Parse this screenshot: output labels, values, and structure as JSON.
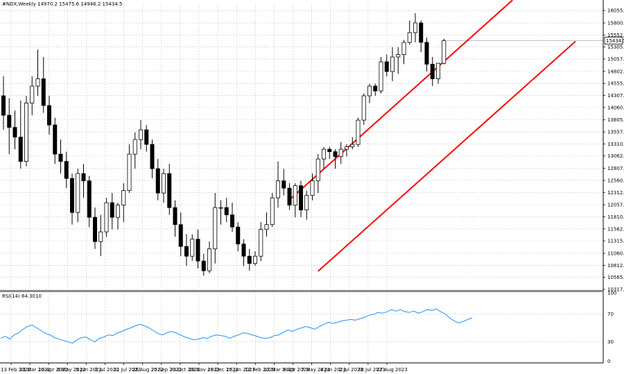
{
  "header": {
    "symbol_line": "#NDX,Weekly  14970.2 15475.6 14946.2 15434.5",
    "rsi_line": "RSI(14) 64.3010"
  },
  "colors": {
    "bull_fill": "#ffffff",
    "bear_fill": "#000000",
    "grid": "#c8c8c8",
    "channel": "#ff0000",
    "rsi": "#1e90ff",
    "price_tag": "#ffffff"
  },
  "chart_data": [
    {
      "type": "candlestick",
      "title": "#NDX,Weekly",
      "last_price_label": "15434.5",
      "ylim": [
        10317.5,
        16200
      ],
      "y_tick_labels": [
        "16055.0",
        "15800.0",
        "15552.5",
        "15305.0",
        "15057.5",
        "14802.5",
        "14555.0",
        "14307.5",
        "14060.0",
        "13805.0",
        "13557.5",
        "13310.0",
        "13062.5",
        "12807.5",
        "12560.0",
        "12312.5",
        "12057.5",
        "11810.0",
        "11562.5",
        "11315.0",
        "11060.0",
        "10812.5",
        "10565.0",
        "10317.5"
      ],
      "x_tick_labels": [
        "13 Feb 2022",
        "13 Mar 2022",
        "10 Apr 2022",
        "8 May 2022",
        "5 Jun 2022",
        "3 Jul 2022",
        "31 Jul 2022",
        "28 Aug 2022",
        "25 Sep 2022",
        "23 Oct 2022",
        "20 Nov 2022",
        "18 Dec 2022",
        "15 Jan 2023",
        "12 Feb 2023",
        "12 Mar 2023",
        "9 Apr 2023",
        "7 May 2023",
        "4 Jun 2023",
        "2 Jul 2023",
        "30 Jul 2023",
        "27 Aug 2023"
      ],
      "candles": [
        [
          14300,
          14700,
          13600,
          13900
        ],
        [
          13900,
          14250,
          13100,
          13650
        ],
        [
          13650,
          14000,
          13200,
          13450
        ],
        [
          13450,
          14200,
          12800,
          12950
        ],
        [
          12950,
          14300,
          12850,
          14150
        ],
        [
          14150,
          14700,
          13900,
          14500
        ],
        [
          14500,
          15250,
          14300,
          14650
        ],
        [
          14650,
          15100,
          13950,
          14100
        ],
        [
          14100,
          14300,
          13500,
          13700
        ],
        [
          13700,
          13850,
          12900,
          13100
        ],
        [
          13100,
          13400,
          12700,
          12950
        ],
        [
          12950,
          13150,
          12400,
          12600
        ],
        [
          12600,
          12700,
          11650,
          11900
        ],
        [
          11900,
          12800,
          11700,
          12700
        ],
        [
          12700,
          12900,
          12200,
          12550
        ],
        [
          12550,
          12650,
          11600,
          11800
        ],
        [
          11800,
          12000,
          11150,
          11300
        ],
        [
          11300,
          11850,
          11000,
          11500
        ],
        [
          11500,
          12200,
          11400,
          12100
        ],
        [
          12100,
          12300,
          11550,
          11800
        ],
        [
          11800,
          12100,
          11550,
          12050
        ],
        [
          12050,
          12500,
          11700,
          12350
        ],
        [
          12350,
          13300,
          12300,
          13100
        ],
        [
          13100,
          13550,
          12800,
          13400
        ],
        [
          13400,
          13800,
          13200,
          13600
        ],
        [
          13600,
          13700,
          13150,
          13300
        ],
        [
          13300,
          13400,
          12600,
          12800
        ],
        [
          12800,
          13000,
          12150,
          12300
        ],
        [
          12300,
          12800,
          12100,
          12700
        ],
        [
          12700,
          12900,
          11850,
          12000
        ],
        [
          12000,
          12150,
          11400,
          11650
        ],
        [
          11650,
          11900,
          11000,
          11200
        ],
        [
          11200,
          11450,
          10800,
          11000
        ],
        [
          11000,
          11450,
          10900,
          11350
        ],
        [
          11350,
          11550,
          10750,
          10900
        ],
        [
          10900,
          11050,
          10600,
          10700
        ],
        [
          10700,
          11300,
          10650,
          11150
        ],
        [
          11150,
          12300,
          10850,
          12000
        ],
        [
          12000,
          12150,
          11650,
          12000
        ],
        [
          12000,
          12200,
          11700,
          11850
        ],
        [
          11850,
          12100,
          11500,
          11600
        ],
        [
          11600,
          11700,
          11100,
          11250
        ],
        [
          11250,
          11350,
          10800,
          11000
        ],
        [
          11000,
          11150,
          10700,
          10850
        ],
        [
          10850,
          11100,
          10800,
          11000
        ],
        [
          11000,
          11700,
          10900,
          11550
        ],
        [
          11550,
          11900,
          11400,
          11650
        ],
        [
          11650,
          12300,
          11600,
          12200
        ],
        [
          12200,
          12950,
          12000,
          12550
        ],
        [
          12550,
          12800,
          12250,
          12400
        ],
        [
          12400,
          12500,
          11950,
          12050
        ],
        [
          12050,
          12500,
          11800,
          12450
        ],
        [
          12450,
          12550,
          11800,
          11950
        ],
        [
          11950,
          12350,
          11750,
          12250
        ],
        [
          12250,
          12700,
          12150,
          12550
        ],
        [
          12550,
          13100,
          12300,
          13000
        ],
        [
          13000,
          13250,
          12800,
          13200
        ],
        [
          13200,
          13250,
          13000,
          13150
        ],
        [
          13150,
          13200,
          12800,
          13050
        ],
        [
          13050,
          13350,
          12900,
          13200
        ],
        [
          13200,
          13300,
          13050,
          13250
        ],
        [
          13250,
          13450,
          13200,
          13300
        ],
        [
          13300,
          13850,
          13250,
          13800
        ],
        [
          13800,
          14350,
          13700,
          14300
        ],
        [
          14300,
          14550,
          14150,
          14500
        ],
        [
          14500,
          14550,
          14300,
          14400
        ],
        [
          14400,
          15100,
          14350,
          15000
        ],
        [
          15000,
          15150,
          14700,
          14800
        ],
        [
          14800,
          15300,
          14600,
          15100
        ],
        [
          15100,
          15300,
          14750,
          15150
        ],
        [
          15150,
          15450,
          14950,
          15400
        ],
        [
          15400,
          15850,
          15350,
          15600
        ],
        [
          15600,
          16000,
          15400,
          15800
        ],
        [
          15800,
          15850,
          15200,
          15400
        ],
        [
          15400,
          15500,
          14800,
          14950
        ],
        [
          14950,
          15100,
          14500,
          14650
        ],
        [
          14650,
          14950,
          14550,
          14970
        ],
        [
          14970,
          15475.6,
          14946.2,
          15434.5
        ]
      ],
      "channel_lines": [
        {
          "from": [
            50,
            12160
          ],
          "to": [
            89,
            16270
          ]
        },
        {
          "from": [
            55,
            10690
          ],
          "to": [
            100,
            15420
          ]
        }
      ]
    },
    {
      "type": "line",
      "title": "RSI(14) 64.3010",
      "ylim": [
        0,
        100
      ],
      "y_tick_labels": [
        "100",
        "70",
        "30",
        "0"
      ],
      "series": [
        {
          "values": [
            35,
            38,
            34,
            40,
            43,
            48,
            52,
            54,
            50,
            46,
            42,
            40,
            36,
            34,
            32,
            30,
            28,
            33,
            36,
            37,
            33,
            30,
            35,
            37,
            40,
            39,
            43,
            45,
            48,
            50,
            53,
            55,
            53,
            50,
            46,
            42,
            40,
            43,
            45,
            43,
            40,
            37,
            35,
            33,
            34,
            36,
            35,
            38,
            40,
            39,
            38,
            35,
            38,
            40,
            43,
            42,
            40,
            38,
            36,
            35,
            36,
            39,
            40,
            44,
            47,
            45,
            48,
            50,
            52,
            50,
            48,
            52,
            55,
            58,
            56,
            58,
            60,
            61,
            62,
            61,
            63,
            65,
            68,
            69,
            72,
            71,
            73,
            76,
            74,
            76,
            73,
            72,
            74,
            71,
            73,
            76,
            75,
            77,
            73,
            70,
            64,
            60,
            57,
            59,
            62,
            64.3
          ]
        }
      ]
    }
  ]
}
